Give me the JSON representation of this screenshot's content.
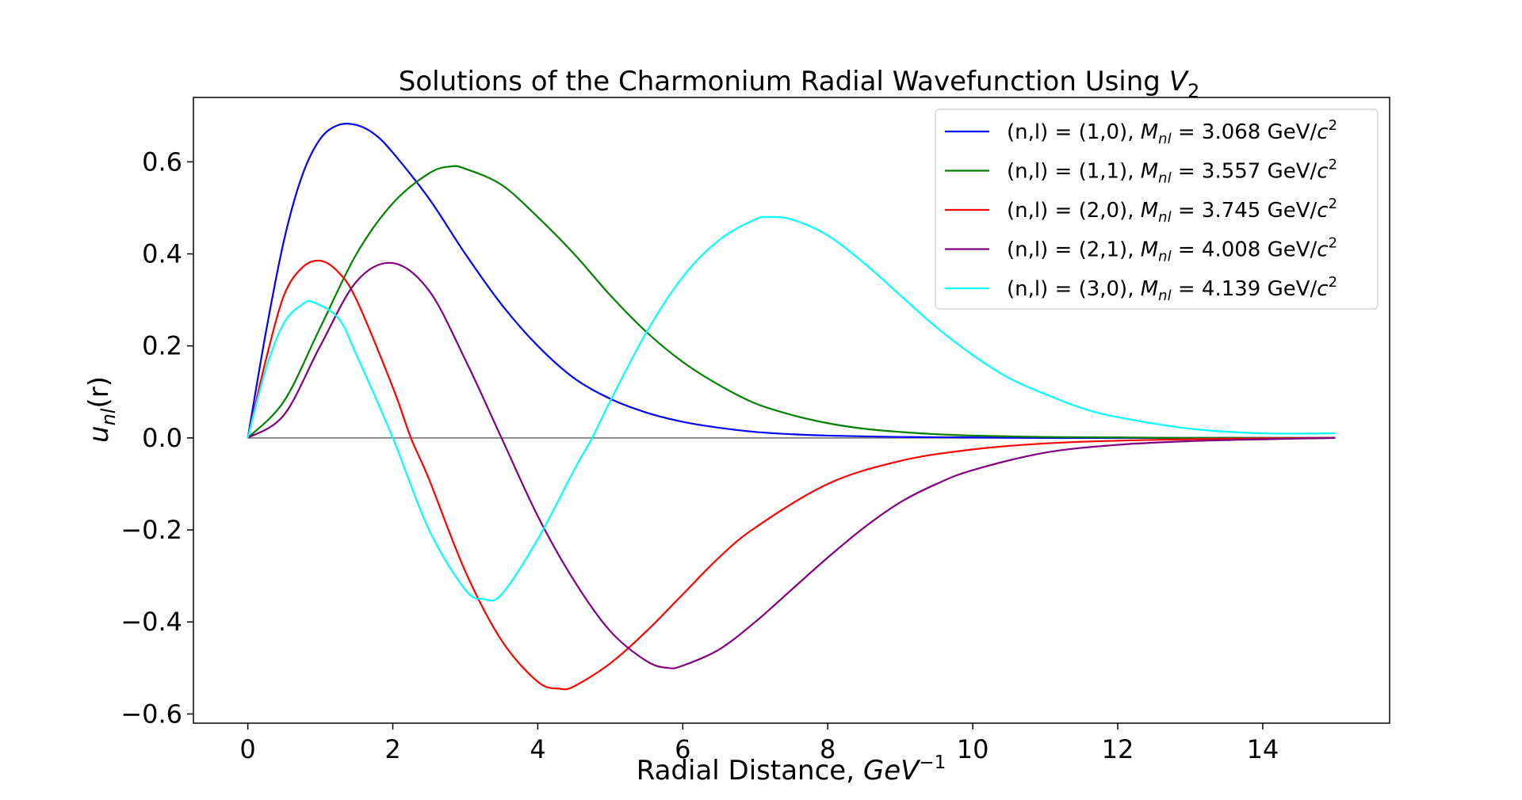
{
  "chart_data": {
    "type": "line",
    "title": {
      "prefix": "Solutions of the Charmonium Radial Wavefunction Using ",
      "var": "V",
      "sub": "2"
    },
    "xlabel": {
      "prefix": "Radial Distance, ",
      "var": "GeV",
      "sup": "−1"
    },
    "ylabel": {
      "var": "u",
      "sub": "nl",
      "suffix": "(r)"
    },
    "xlim": [
      -0.75,
      15.75
    ],
    "ylim": [
      -0.62,
      0.74
    ],
    "xticks": [
      0,
      2,
      4,
      6,
      8,
      10,
      12,
      14
    ],
    "xtick_labels": [
      "0",
      "2",
      "4",
      "6",
      "8",
      "10",
      "12",
      "14"
    ],
    "yticks": [
      -0.6,
      -0.4,
      -0.2,
      0.0,
      0.2,
      0.4,
      0.6
    ],
    "ytick_labels": [
      "−0.6",
      "−0.4",
      "−0.2",
      "0.0",
      "0.2",
      "0.4",
      "0.6"
    ],
    "grid": false,
    "legend_position": "top-right",
    "zero_line": {
      "y": 0,
      "x_range": [
        0,
        15
      ],
      "color": "#808080"
    },
    "series": [
      {
        "name": "(n,l) = (1,0), M_nl = 3.068 GeV/c^2",
        "label": {
          "state": "(n,l) = (1,0), ",
          "mass": " 3.068 GeV/"
        },
        "color": "#0000ff",
        "x": [
          0,
          0.25,
          0.5,
          0.75,
          1.0,
          1.25,
          1.5,
          1.75,
          2.0,
          2.5,
          3.0,
          3.5,
          4.0,
          4.5,
          5.0,
          5.5,
          6.0,
          6.5,
          7.0,
          7.5,
          8.0,
          9.0,
          10.0,
          11.0,
          12.0,
          13.0,
          14.0,
          15.0
        ],
        "y": [
          0,
          0.23,
          0.43,
          0.57,
          0.65,
          0.68,
          0.68,
          0.66,
          0.62,
          0.52,
          0.4,
          0.29,
          0.2,
          0.13,
          0.085,
          0.055,
          0.035,
          0.022,
          0.013,
          0.008,
          0.005,
          0.002,
          0.001,
          0.0,
          0.0,
          0.0,
          0.0,
          0.0
        ]
      },
      {
        "name": "(n,l) = (1,1), M_nl = 3.557 GeV/c^2",
        "label": {
          "state": "(n,l) = (1,1), ",
          "mass": " 3.557 GeV/"
        },
        "color": "#008000",
        "x": [
          0,
          0.5,
          1.0,
          1.5,
          2.0,
          2.5,
          2.8,
          3.0,
          3.5,
          4.0,
          4.5,
          5.0,
          5.5,
          6.0,
          6.5,
          7.0,
          7.5,
          8.0,
          8.5,
          9.0,
          9.5,
          10.0,
          11.0,
          12.0,
          13.0,
          14.0,
          15.0
        ],
        "y": [
          0,
          0.08,
          0.24,
          0.4,
          0.51,
          0.575,
          0.59,
          0.585,
          0.55,
          0.48,
          0.4,
          0.31,
          0.23,
          0.165,
          0.115,
          0.075,
          0.05,
          0.032,
          0.02,
          0.013,
          0.008,
          0.005,
          0.002,
          0.001,
          0.0,
          0.0,
          0.0
        ]
      },
      {
        "name": "(n,l) = (2,0), M_nl = 3.745 GeV/c^2",
        "label": {
          "state": "(n,l) = (2,0), ",
          "mass": " 3.745 GeV/"
        },
        "color": "#ff0000",
        "x": [
          0,
          0.25,
          0.5,
          0.75,
          1.0,
          1.25,
          1.5,
          2.0,
          2.25,
          2.5,
          3.0,
          3.5,
          4.0,
          4.3,
          4.5,
          5.0,
          5.5,
          6.0,
          6.5,
          7.0,
          8.0,
          9.0,
          10.0,
          11.0,
          12.0,
          13.0,
          14.0,
          15.0
        ],
        "y": [
          0,
          0.17,
          0.31,
          0.37,
          0.385,
          0.36,
          0.3,
          0.11,
          0.0,
          -0.09,
          -0.29,
          -0.44,
          -0.53,
          -0.545,
          -0.54,
          -0.49,
          -0.42,
          -0.34,
          -0.26,
          -0.195,
          -0.1,
          -0.05,
          -0.025,
          -0.012,
          -0.006,
          -0.003,
          -0.001,
          0.0
        ]
      },
      {
        "name": "(n,l) = (2,1), M_nl = 4.008 GeV/c^2",
        "label": {
          "state": "(n,l) = (2,1), ",
          "mass": " 4.008 GeV/"
        },
        "color": "#800080",
        "x": [
          0,
          0.5,
          1.0,
          1.5,
          2.0,
          2.5,
          3.0,
          3.5,
          4.0,
          4.5,
          5.0,
          5.5,
          5.8,
          6.0,
          6.5,
          7.0,
          7.5,
          8.0,
          8.5,
          9.0,
          9.5,
          10.0,
          11.0,
          12.0,
          13.0,
          14.0,
          15.0
        ],
        "y": [
          0,
          0.05,
          0.2,
          0.34,
          0.38,
          0.32,
          0.17,
          0.0,
          -0.17,
          -0.31,
          -0.42,
          -0.485,
          -0.5,
          -0.495,
          -0.46,
          -0.4,
          -0.33,
          -0.26,
          -0.195,
          -0.14,
          -0.1,
          -0.07,
          -0.032,
          -0.015,
          -0.007,
          -0.003,
          0.0
        ]
      },
      {
        "name": "(n,l) = (3,0), M_nl = 4.139 GeV/c^2",
        "label": {
          "state": "(n,l) = (3,0), ",
          "mass": " 4.139 GeV/"
        },
        "color": "#00ffff",
        "x": [
          0,
          0.25,
          0.5,
          0.75,
          0.9,
          1.25,
          1.5,
          2.0,
          2.5,
          3.0,
          3.25,
          3.5,
          4.0,
          4.5,
          4.75,
          5.0,
          5.5,
          6.0,
          6.5,
          7.0,
          7.2,
          7.5,
          8.0,
          8.5,
          9.0,
          9.5,
          10.0,
          10.5,
          11.0,
          11.5,
          12.0,
          13.0,
          14.0,
          15.0
        ],
        "y": [
          0,
          0.15,
          0.25,
          0.29,
          0.295,
          0.26,
          0.18,
          0.0,
          -0.2,
          -0.33,
          -0.35,
          -0.34,
          -0.22,
          -0.07,
          0.0,
          0.08,
          0.23,
          0.35,
          0.43,
          0.475,
          0.48,
          0.475,
          0.44,
          0.38,
          0.31,
          0.24,
          0.18,
          0.13,
          0.095,
          0.065,
          0.045,
          0.02,
          0.01,
          0.01
        ]
      }
    ]
  }
}
